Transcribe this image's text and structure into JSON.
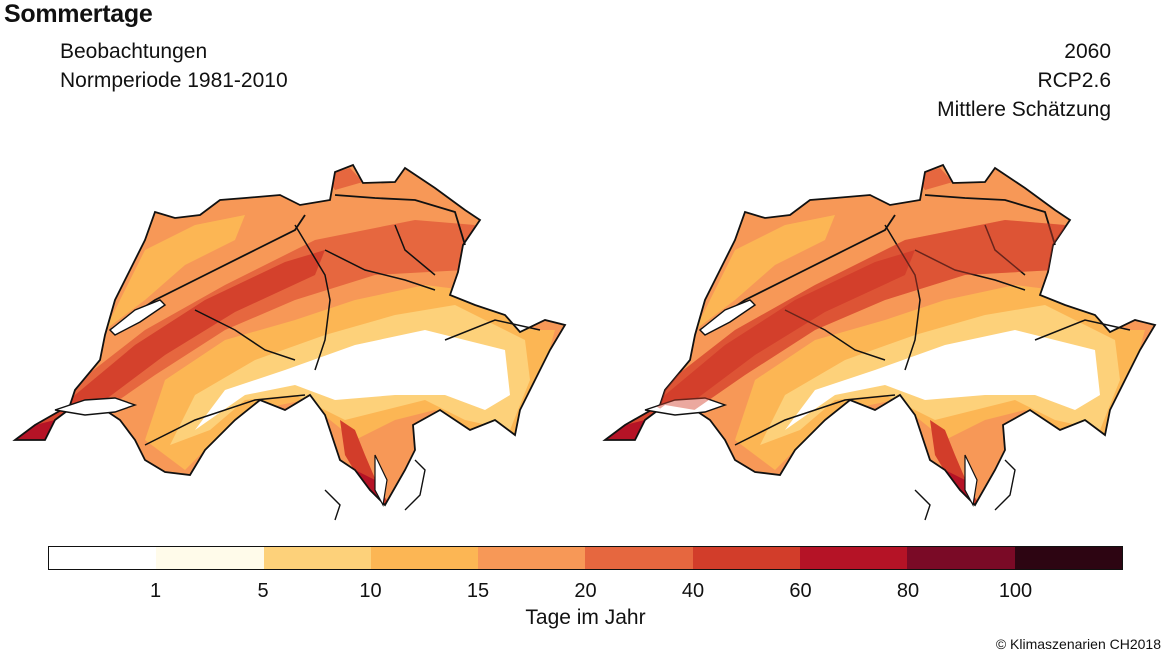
{
  "title": "Sommertage",
  "left_panel": {
    "line1": "Beobachtungen",
    "line2": "Normperiode 1981-2010"
  },
  "right_panel": {
    "line1": "2060",
    "line2": "RCP2.6",
    "line3": "Mittlere Schätzung"
  },
  "legend": {
    "unit": "Tage im Jahr",
    "tick_labels": [
      "1",
      "5",
      "10",
      "15",
      "20",
      "40",
      "60",
      "80",
      "100"
    ],
    "colors": [
      "#ffffff",
      "#fffbea",
      "#fdd17a",
      "#fcb654",
      "#f79857",
      "#e6673f",
      "#d23d2a",
      "#b51326",
      "#7a0a26",
      "#2d0512"
    ]
  },
  "copyright": "© Klimaszenarien CH2018"
}
